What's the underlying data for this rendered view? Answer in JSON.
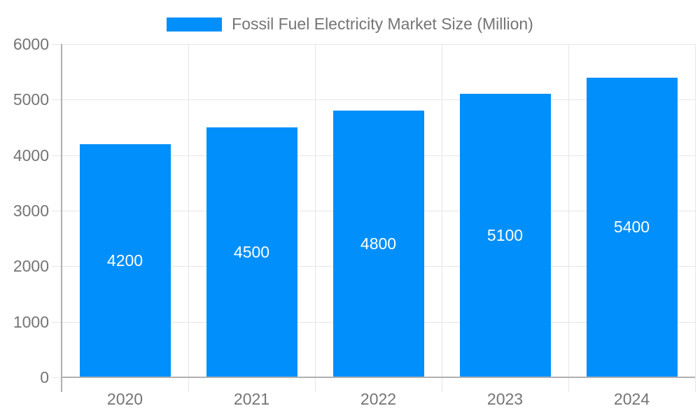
{
  "legend": {
    "label": "Fossil Fuel Electricity Market Size (Million)",
    "swatch_color": "#008FFB"
  },
  "chart_data": {
    "type": "bar",
    "title": "Fossil Fuel Electricity Market Size (Million)",
    "categories": [
      "2020",
      "2021",
      "2022",
      "2023",
      "2024"
    ],
    "values": [
      4200,
      4500,
      4800,
      5100,
      5400
    ],
    "value_labels": [
      "4200",
      "4500",
      "4800",
      "5100",
      "5400"
    ],
    "xlabel": "",
    "ylabel": "",
    "ylim": [
      0,
      6000
    ],
    "yticks": [
      0,
      1000,
      2000,
      3000,
      4000,
      5000,
      6000
    ],
    "ytick_labels": [
      "0",
      "1000",
      "2000",
      "3000",
      "4000",
      "5000",
      "6000"
    ],
    "grid": true,
    "legend_position": "top-center",
    "colors": {
      "bar": "#008FFB",
      "value_label": "#ffffff",
      "axis_text": "#757575",
      "gridline": "#e6e6e6",
      "axis_line": "#b0b0b0"
    }
  }
}
